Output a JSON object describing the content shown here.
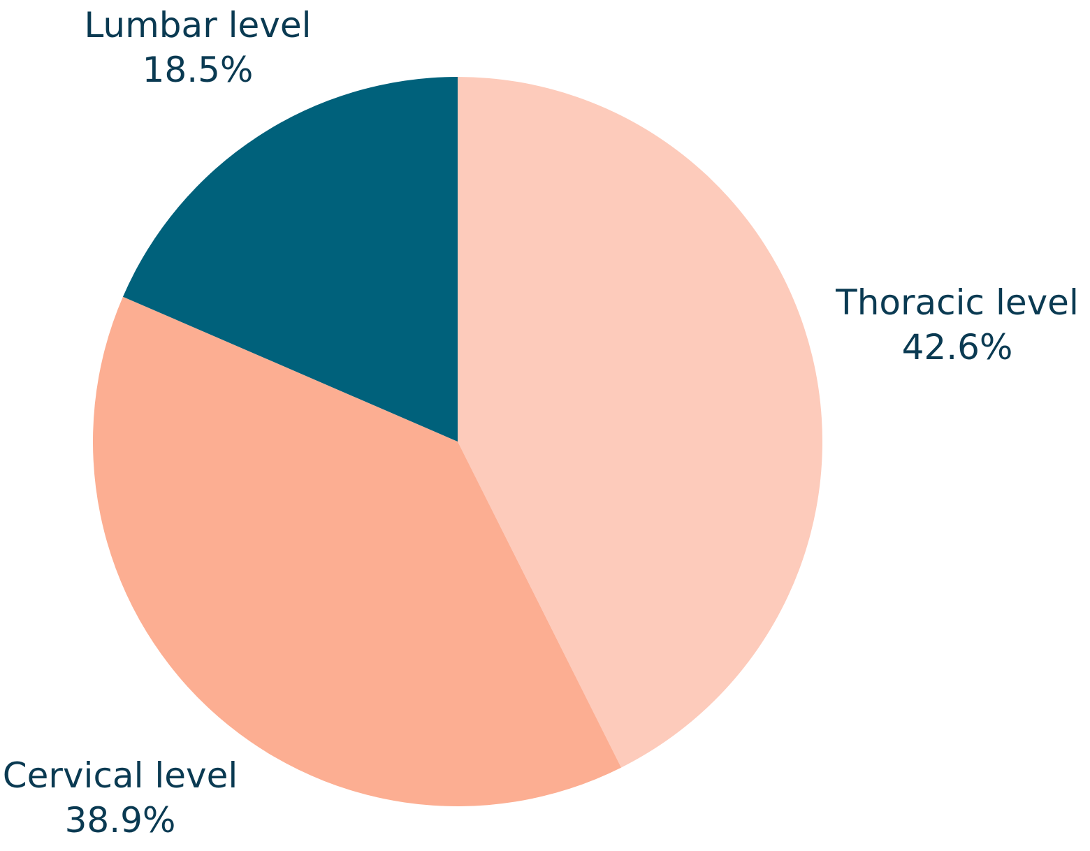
{
  "chart_data": {
    "type": "pie",
    "title": "",
    "start_angle_deg": 0,
    "direction": "clockwise",
    "label_color": "#0a3a52",
    "slices": [
      {
        "label": "Thoracic level",
        "value": 42.6,
        "value_label": "42.6%",
        "color": "#fdcbbb"
      },
      {
        "label": "Cervical level",
        "value": 38.9,
        "value_label": "38.9%",
        "color": "#fcae92"
      },
      {
        "label": "Lumbar level",
        "value": 18.5,
        "value_label": "18.5%",
        "color": "#00617b"
      }
    ]
  }
}
